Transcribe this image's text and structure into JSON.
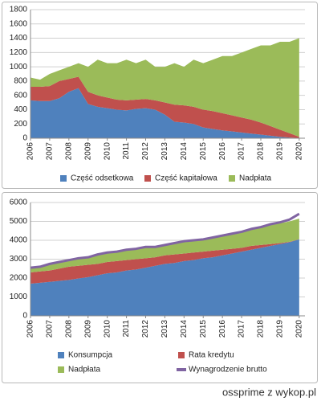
{
  "chart_data": [
    {
      "type": "area",
      "stacked": true,
      "grid": true,
      "x": [
        2006,
        2006.5,
        2007,
        2007.5,
        2008,
        2008.5,
        2009,
        2009.5,
        2010,
        2010.5,
        2011,
        2011.5,
        2012,
        2012.5,
        2013,
        2013.5,
        2014,
        2014.5,
        2015,
        2015.5,
        2016,
        2016.5,
        2017,
        2017.5,
        2018,
        2018.5,
        2019,
        2019.5,
        2020
      ],
      "xlim": [
        2006,
        2020.3
      ],
      "xticks": [
        2006,
        2007,
        2008,
        2009,
        2010,
        2011,
        2012,
        2013,
        2014,
        2015,
        2016,
        2017,
        2018,
        2019,
        2020
      ],
      "ylim": [
        0,
        1800
      ],
      "yticks": [
        0,
        200,
        400,
        600,
        800,
        1000,
        1200,
        1400,
        1600,
        1800
      ],
      "series": [
        {
          "name": "Część odsetkowa",
          "color": "#4f81bd",
          "values": [
            530,
            520,
            520,
            560,
            650,
            700,
            480,
            440,
            420,
            400,
            390,
            410,
            420,
            400,
            330,
            230,
            220,
            200,
            150,
            130,
            110,
            95,
            80,
            65,
            50,
            35,
            20,
            10,
            3
          ]
        },
        {
          "name": "Część kapitałowa",
          "color": "#c0504d",
          "values": [
            190,
            200,
            210,
            240,
            180,
            160,
            170,
            160,
            150,
            140,
            140,
            130,
            130,
            130,
            170,
            240,
            240,
            240,
            250,
            250,
            240,
            225,
            210,
            195,
            170,
            135,
            100,
            60,
            17
          ]
        },
        {
          "name": "Nadpłata",
          "color": "#9bbb59",
          "values": [
            130,
            100,
            170,
            150,
            170,
            190,
            350,
            500,
            480,
            510,
            570,
            510,
            550,
            470,
            500,
            580,
            540,
            660,
            650,
            720,
            800,
            830,
            910,
            990,
            1080,
            1130,
            1230,
            1280,
            1380
          ]
        }
      ]
    },
    {
      "type": "area",
      "stacked": true,
      "grid": true,
      "x": [
        2006,
        2006.5,
        2007,
        2007.5,
        2008,
        2008.5,
        2009,
        2009.5,
        2010,
        2010.5,
        2011,
        2011.5,
        2012,
        2012.5,
        2013,
        2013.5,
        2014,
        2014.5,
        2015,
        2015.5,
        2016,
        2016.5,
        2017,
        2017.5,
        2018,
        2018.5,
        2019,
        2019.5,
        2020
      ],
      "xlim": [
        2006,
        2020.3
      ],
      "xticks": [
        2006,
        2007,
        2008,
        2009,
        2010,
        2011,
        2012,
        2013,
        2014,
        2015,
        2016,
        2017,
        2018,
        2019,
        2020
      ],
      "ylim": [
        0,
        6000
      ],
      "yticks": [
        0,
        1000,
        2000,
        3000,
        4000,
        5000,
        6000
      ],
      "series": [
        {
          "name": "Konsumpcja",
          "color": "#4f81bd",
          "values": [
            1700,
            1750,
            1800,
            1850,
            1900,
            1980,
            2050,
            2150,
            2250,
            2300,
            2400,
            2450,
            2550,
            2650,
            2750,
            2800,
            2900,
            2950,
            3050,
            3100,
            3200,
            3300,
            3400,
            3500,
            3600,
            3700,
            3800,
            3900,
            4050
          ]
        },
        {
          "name": "Rata kredytu",
          "color": "#c0504d",
          "values": [
            600,
            600,
            600,
            650,
            700,
            670,
            650,
            600,
            600,
            600,
            550,
            550,
            500,
            450,
            450,
            450,
            400,
            400,
            350,
            350,
            300,
            250,
            200,
            200,
            150,
            100,
            50,
            20,
            10
          ]
        },
        {
          "name": "Nadpłata",
          "color": "#9bbb59",
          "values": [
            200,
            200,
            300,
            300,
            300,
            350,
            350,
            450,
            450,
            450,
            500,
            500,
            550,
            500,
            500,
            550,
            600,
            600,
            600,
            650,
            700,
            750,
            800,
            850,
            900,
            1000,
            1050,
            1080,
            1090
          ]
        },
        {
          "name": "Wynagrodzenie brutto",
          "type": "line",
          "color": "#8064a2",
          "values": [
            2550,
            2600,
            2750,
            2850,
            2950,
            3050,
            3100,
            3250,
            3350,
            3400,
            3500,
            3550,
            3650,
            3650,
            3750,
            3850,
            3950,
            4000,
            4050,
            4150,
            4250,
            4350,
            4450,
            4600,
            4700,
            4850,
            4950,
            5100,
            5400
          ]
        }
      ]
    }
  ],
  "watermark": "ossprime z wykop.pl"
}
